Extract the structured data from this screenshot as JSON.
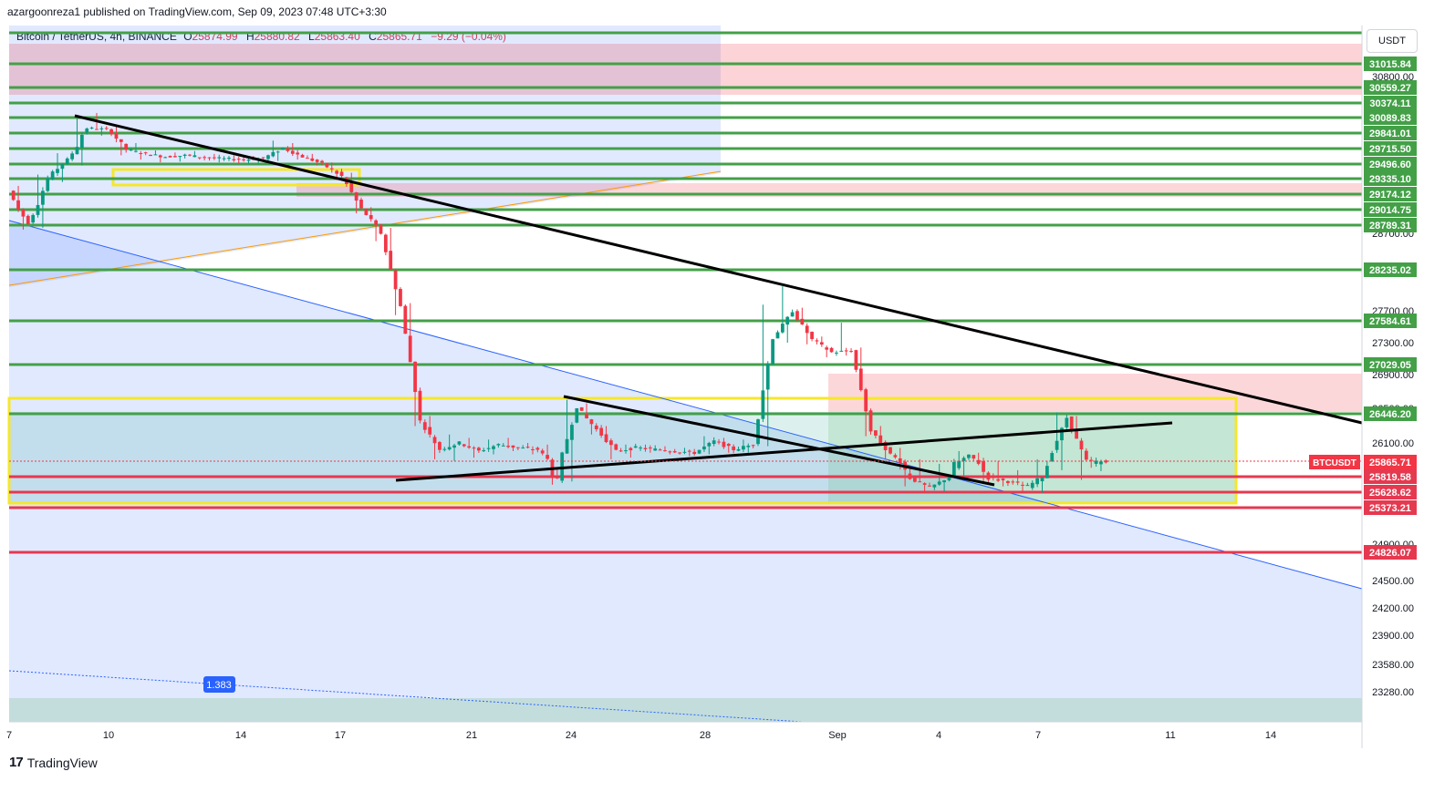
{
  "header": {
    "published_line": "azargoonreza1 published on TradingView.com, Sep 09, 2023 07:48 UTC+3:30"
  },
  "legend": {
    "symbol": "Bitcoin / TetherUS, 4h, BINANCE",
    "open_label": "O",
    "open": "25874.99",
    "high_label": "H",
    "high": "25880.82",
    "low_label": "L",
    "low": "25863.40",
    "close_label": "C",
    "close": "25865.71",
    "change": "−9.29 (−0.04%)"
  },
  "currency": "USDT",
  "brand": {
    "logo": "17",
    "name": "TradingView"
  },
  "fib_label": "1.383",
  "colors": {
    "up": "#089981",
    "down": "#f23645",
    "level_green": "#43a047",
    "level_red": "#e53950",
    "yellow": "#f5e72b"
  },
  "chart_data": {
    "type": "candlestick",
    "x_ticks": [
      "7",
      "10",
      "14",
      "17",
      "21",
      "24",
      "28",
      "Sep",
      "4",
      "7",
      "11",
      "14"
    ],
    "y_ticks": [
      "28700.00",
      "27700.00",
      "27300.00",
      "26900.00",
      "26500.00",
      "26100.00",
      "24900.00",
      "24500.00",
      "24200.00",
      "23900.00",
      "23580.00",
      "23280.00"
    ],
    "green_levels": [
      "31015.84",
      "30559.27",
      "30374.11",
      "30089.83",
      "29841.01",
      "29715.50",
      "29496.60",
      "29335.10",
      "29174.12",
      "29014.75",
      "28789.31",
      "28235.02",
      "27584.61",
      "27029.05",
      "26446.20"
    ],
    "red_levels": [
      "25819.58",
      "25628.62",
      "25373.21",
      "24826.07"
    ],
    "hidden_tick": "30800.00",
    "current_price": {
      "label": "BTCUSDT",
      "value": "25865.71"
    },
    "ohlc_path": [
      [
        29210,
        29260,
        28740,
        28820
      ],
      [
        28820,
        29380,
        28760,
        29340
      ],
      [
        29340,
        29650,
        29300,
        29560
      ],
      [
        29560,
        30080,
        29480,
        29920
      ],
      [
        29920,
        30180,
        29820,
        29900
      ],
      [
        29900,
        29950,
        29620,
        29700
      ],
      [
        29700,
        29760,
        29560,
        29640
      ],
      [
        29640,
        29690,
        29520,
        29600
      ],
      [
        29600,
        29660,
        29530,
        29620
      ],
      [
        29620,
        29680,
        29560,
        29590
      ],
      [
        29590,
        29640,
        29520,
        29570
      ],
      [
        29570,
        29620,
        29500,
        29560
      ],
      [
        29560,
        29610,
        29500,
        29580
      ],
      [
        29580,
        29780,
        29540,
        29720
      ],
      [
        29720,
        29760,
        29560,
        29600
      ],
      [
        29600,
        29640,
        29480,
        29500
      ],
      [
        29500,
        29520,
        29320,
        29360
      ],
      [
        29360,
        29400,
        28960,
        29020
      ],
      [
        29020,
        29040,
        28600,
        28700
      ],
      [
        28700,
        28760,
        27650,
        27760
      ],
      [
        27760,
        27800,
        26300,
        26360
      ],
      [
        26360,
        26420,
        25900,
        26020
      ],
      [
        26020,
        26200,
        25880,
        26100
      ],
      [
        26100,
        26160,
        25920,
        26000
      ],
      [
        26000,
        26140,
        25960,
        26080
      ],
      [
        26080,
        26160,
        26000,
        26040
      ],
      [
        26040,
        26100,
        25960,
        26020
      ],
      [
        26020,
        26080,
        25720,
        25780
      ],
      [
        25780,
        26600,
        25760,
        26520
      ],
      [
        26520,
        26560,
        26200,
        26260
      ],
      [
        26260,
        26300,
        25900,
        26000
      ],
      [
        26000,
        26080,
        25920,
        26040
      ],
      [
        26040,
        26080,
        25980,
        26020
      ],
      [
        26020,
        26060,
        25960,
        26000
      ],
      [
        26000,
        26040,
        25940,
        25980
      ],
      [
        25980,
        26180,
        25960,
        26120
      ],
      [
        26120,
        26160,
        25980,
        26020
      ],
      [
        26020,
        26140,
        25980,
        26080
      ],
      [
        26080,
        27780,
        26060,
        27360
      ],
      [
        27360,
        28020,
        27300,
        27700
      ],
      [
        27700,
        27740,
        27280,
        27340
      ],
      [
        27340,
        27380,
        27120,
        27180
      ],
      [
        27180,
        27560,
        27140,
        27200
      ],
      [
        27200,
        27240,
        26180,
        26240
      ],
      [
        26240,
        26300,
        25900,
        25960
      ],
      [
        25960,
        26040,
        25700,
        25800
      ],
      [
        25800,
        25900,
        25620,
        25680
      ],
      [
        25680,
        25860,
        25640,
        25820
      ],
      [
        25820,
        26000,
        25780,
        25940
      ],
      [
        25940,
        25980,
        25760,
        25800
      ],
      [
        25800,
        25880,
        25700,
        25760
      ],
      [
        25760,
        25840,
        25640,
        25700
      ],
      [
        25700,
        25900,
        25620,
        25860
      ],
      [
        25860,
        26460,
        25840,
        26400
      ],
      [
        26400,
        26420,
        25780,
        25880
      ],
      [
        25880,
        25920,
        25840,
        25866
      ]
    ]
  }
}
